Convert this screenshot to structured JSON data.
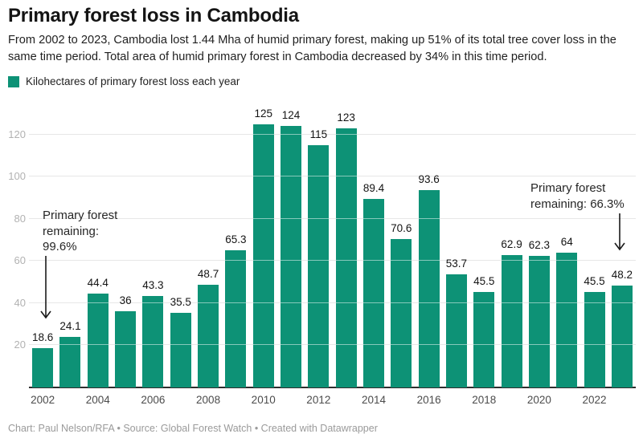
{
  "header": {
    "title": "Primary forest loss in Cambodia",
    "subtitle": "From 2002 to 2023, Cambodia lost 1.44 Mha of humid primary forest, making up 51% of its total tree cover loss in the same time period. Total area of humid primary forest in Cambodia decreased by 34% in this time period."
  },
  "legend": {
    "label": "Kilohectares of primary forest loss each year",
    "swatch_color": "#0d9276"
  },
  "chart_data": {
    "type": "bar",
    "title": "Primary forest loss in Cambodia",
    "categories": [
      2002,
      2003,
      2004,
      2005,
      2006,
      2007,
      2008,
      2009,
      2010,
      2011,
      2012,
      2013,
      2014,
      2015,
      2016,
      2017,
      2018,
      2019,
      2020,
      2021,
      2022,
      2023
    ],
    "values": [
      18.6,
      24.1,
      44.4,
      36,
      43.3,
      35.5,
      48.7,
      65.3,
      125,
      124,
      115,
      123,
      89.4,
      70.6,
      93.6,
      53.7,
      45.5,
      62.9,
      62.3,
      64,
      45.5,
      48.2
    ],
    "value_labels": [
      "18.6",
      "24.1",
      "44.4",
      "36",
      "43.3",
      "35.5",
      "48.7",
      "65.3",
      "125",
      "124",
      "115",
      "123",
      "89.4",
      "70.6",
      "93.6",
      "53.7",
      "45.5",
      "62.9",
      "62.3",
      "64",
      "45.5",
      "48.2"
    ],
    "series_name": "Kilohectares of primary forest loss each year",
    "y_ticks": [
      20,
      40,
      60,
      80,
      100,
      120
    ],
    "x_tick_labels": [
      "2002",
      "2004",
      "2006",
      "2008",
      "2010",
      "2012",
      "2014",
      "2016",
      "2018",
      "2020",
      "2022"
    ],
    "ylim": [
      0,
      131
    ],
    "grid": true,
    "bar_color": "#0d9276",
    "annotations": {
      "left": {
        "lines": [
          "Primary forest",
          "remaining:",
          "99.6%"
        ],
        "points_to_year": 2002
      },
      "right": {
        "lines": [
          "Primary forest",
          "remaining: 66.3%"
        ],
        "points_to_year": 2023
      }
    }
  },
  "footer": {
    "text": "Chart: Paul Nelson/RFA • Source: Global Forest Watch • Created with Datawrapper"
  }
}
